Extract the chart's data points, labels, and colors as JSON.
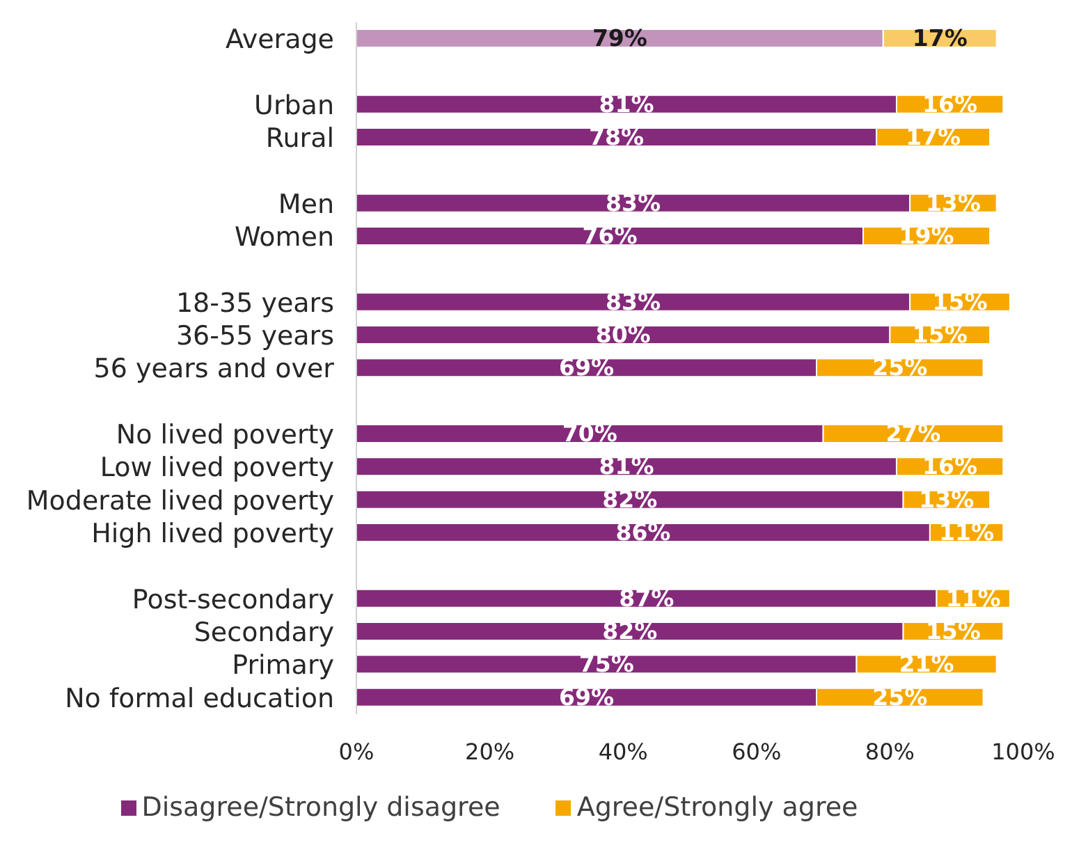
{
  "chart_data": {
    "type": "bar",
    "orientation": "horizontal",
    "stacked": true,
    "categories": [
      "Average",
      null,
      "Urban",
      "Rural",
      null,
      "Men",
      "Women",
      null,
      "18-35 years",
      "36-55 years",
      "56 years and over",
      null,
      "No lived poverty",
      "Low lived poverty",
      "Moderate lived poverty",
      "High lived poverty",
      null,
      "Post-secondary",
      "Secondary",
      "Primary",
      "No formal education"
    ],
    "series": [
      {
        "name": "Disagree/Strongly disagree",
        "color": "#852a7a",
        "colors": [
          "#c294bc",
          "#852a7a",
          "#852a7a",
          "#852a7a",
          "#852a7a",
          "#852a7a",
          "#852a7a",
          "#852a7a",
          "#852a7a",
          "#852a7a",
          "#852a7a",
          "#852a7a",
          "#852a7a",
          "#852a7a",
          "#852a7a",
          "#852a7a",
          "#852a7a",
          "#852a7a",
          "#852a7a",
          "#852a7a",
          "#852a7a"
        ],
        "values": [
          79,
          null,
          81,
          78,
          null,
          83,
          76,
          null,
          83,
          80,
          69,
          null,
          70,
          81,
          82,
          86,
          null,
          87,
          82,
          75,
          69
        ],
        "value_labels": [
          "79%",
          null,
          "81%",
          "78%",
          null,
          "83%",
          "76%",
          null,
          "83%",
          "80%",
          "69%",
          null,
          "70%",
          "81%",
          "82%",
          "86%",
          null,
          "87%",
          "82%",
          "75%",
          "69%"
        ]
      },
      {
        "name": "Agree/Strongly agree",
        "color": "#f6a800",
        "colors": [
          "#f9cb66",
          "#f6a800",
          "#f6a800",
          "#f6a800",
          "#f6a800",
          "#f6a800",
          "#f6a800",
          "#f6a800",
          "#f6a800",
          "#f6a800",
          "#f6a800",
          "#f6a800",
          "#f6a800",
          "#f6a800",
          "#f6a800",
          "#f6a800",
          "#f6a800",
          "#f6a800",
          "#f6a800",
          "#f6a800",
          "#f6a800"
        ],
        "values": [
          17,
          null,
          16,
          17,
          null,
          13,
          19,
          null,
          15,
          15,
          25,
          null,
          27,
          16,
          13,
          11,
          null,
          11,
          15,
          21,
          25
        ],
        "value_labels": [
          "17%",
          null,
          "16%",
          "17%",
          null,
          "13%",
          "19%",
          null,
          "15%",
          "15%",
          "25%",
          null,
          "27%",
          "16%",
          "13%",
          "11%",
          null,
          "11%",
          "15%",
          "21%",
          "25%"
        ]
      }
    ],
    "xlim": [
      0,
      100
    ],
    "xticks": [
      {
        "value": 0,
        "label": "0%"
      },
      {
        "value": 20,
        "label": "20%"
      },
      {
        "value": 40,
        "label": "40%"
      },
      {
        "value": 60,
        "label": "60%"
      },
      {
        "value": 80,
        "label": "80%"
      },
      {
        "value": 100,
        "label": "100%"
      }
    ],
    "legend": "bottom"
  }
}
